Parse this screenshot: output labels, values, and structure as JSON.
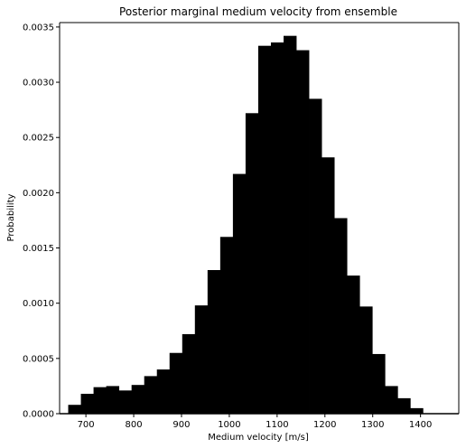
{
  "chart_data": {
    "type": "bar",
    "title": "Posterior marginal medium velocity from ensemble",
    "xlabel": "Medium velocity [m/s]",
    "ylabel": "Probability",
    "xlim": [
      645,
      1480
    ],
    "ylim": [
      0,
      0.00354
    ],
    "bin_width": 26.5,
    "bin_edges_start": 663,
    "values": [
      8e-05,
      0.00018,
      0.00024,
      0.00025,
      0.00021,
      0.00026,
      0.00034,
      0.0004,
      0.00055,
      0.00072,
      0.00098,
      0.0013,
      0.0016,
      0.00217,
      0.00272,
      0.00333,
      0.00336,
      0.00342,
      0.00329,
      0.00285,
      0.00232,
      0.00177,
      0.00125,
      0.00097,
      0.00054,
      0.00025,
      0.00014,
      5e-05
    ],
    "xticks": [
      700,
      800,
      900,
      1000,
      1100,
      1200,
      1300,
      1400
    ],
    "yticks": [
      0.0,
      0.0005,
      0.001,
      0.0015,
      0.002,
      0.0025,
      0.003,
      0.0035
    ],
    "ytick_labels": [
      "0.0000",
      "0.0005",
      "0.0010",
      "0.0015",
      "0.0020",
      "0.0025",
      "0.0030",
      "0.0035"
    ],
    "xtick_labels": [
      "700",
      "800",
      "900",
      "1000",
      "1100",
      "1200",
      "1300",
      "1400"
    ],
    "bar_color": "#000000",
    "grid": false,
    "legend": "none"
  }
}
